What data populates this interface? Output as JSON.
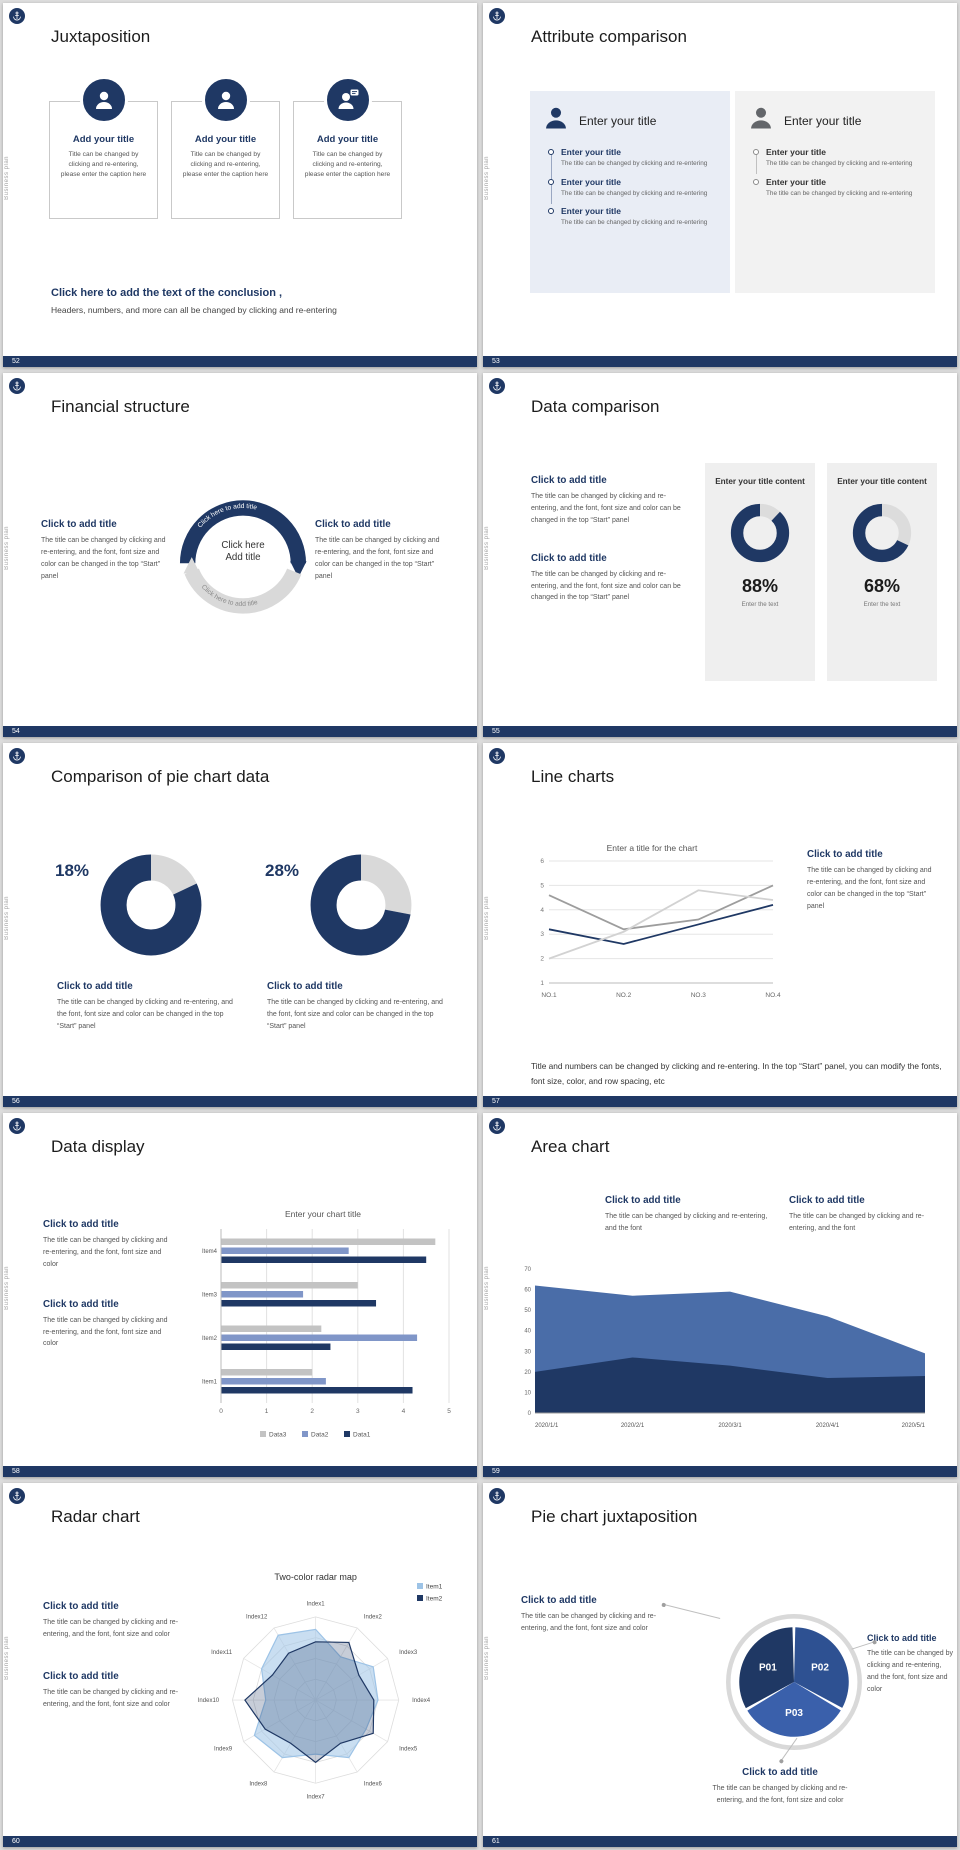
{
  "brand": {
    "vertical_text": "Business plan",
    "accent_color": "#1f3864"
  },
  "slides": {
    "s52": {
      "number": "52",
      "title": "Juxtaposition",
      "cards": [
        {
          "title": "Add your title",
          "caption": "Title can be changed by clicking and re-entering, please enter the caption here"
        },
        {
          "title": "Add your title",
          "caption": "Title can be changed by clicking and re-entering, please enter the caption here"
        },
        {
          "title": "Add your title",
          "caption": "Title can be changed by clicking and re-entering, please enter the caption here"
        }
      ],
      "conclusion_title": "Click here to add the text of the conclusion ,",
      "conclusion_text": "Headers, numbers, and more can all be changed by clicking and re-entering"
    },
    "s53": {
      "number": "53",
      "title": "Attribute comparison",
      "left_panel": {
        "heading": "Enter your title",
        "items": [
          {
            "title": "Enter your title",
            "caption": "The title can be changed by clicking and re-entering"
          },
          {
            "title": "Enter your title",
            "caption": "The title can be changed by clicking and re-entering"
          },
          {
            "title": "Enter your title",
            "caption": "The title can be changed by clicking and re-entering"
          }
        ]
      },
      "right_panel": {
        "heading": "Enter your title",
        "items": [
          {
            "title": "Enter your title",
            "caption": "The title can be changed by clicking and re-entering"
          },
          {
            "title": "Enter your title",
            "caption": "The title can be changed by clicking and re-entering"
          }
        ]
      }
    },
    "s54": {
      "number": "54",
      "title": "Financial structure",
      "arc_text": "Click here to add title",
      "center": {
        "line1": "Click here",
        "line2": "Add title"
      },
      "left_block": {
        "title": "Click to add title",
        "caption": "The title can be changed by clicking and re-entering, and the font, font size and color can be changed in the top “Start” panel"
      },
      "right_block": {
        "title": "Click to add title",
        "caption": "The title can be changed by clicking and re-entering, and the font, font size and color can be changed in the top “Start” panel"
      }
    },
    "s55": {
      "number": "55",
      "title": "Data comparison",
      "blocks": [
        {
          "title": "Click to add title",
          "caption": "The title can be changed by clicking and re-entering, and the font, font size and color can be changed in the top “Start” panel"
        },
        {
          "title": "Click to add title",
          "caption": "The title can be changed by clicking and re-entering, and the font, font size and color can be changed in the top “Start” panel"
        }
      ],
      "panels": [
        {
          "heading": "Enter your title content",
          "percent": "88%",
          "sub": "Enter the text"
        },
        {
          "heading": "Enter your title content",
          "percent": "68%",
          "sub": "Enter the text"
        }
      ]
    },
    "s56": {
      "number": "56",
      "title": "Comparison of pie chart data",
      "groups": [
        {
          "percent": "18%",
          "block": {
            "title": "Click to add title",
            "caption": "The title can be changed by clicking and re-entering, and the font, font size and color can be changed in the top “Start” panel"
          }
        },
        {
          "percent": "28%",
          "block": {
            "title": "Click to add title",
            "caption": "The title can be changed by clicking and re-entering, and the font, font size and color can be changed in the top “Start” panel"
          }
        }
      ]
    },
    "s57": {
      "number": "57",
      "title": "Line charts",
      "block": {
        "title": "Click to add title",
        "caption": "The title can be changed by clicking and re-entering, and the font, font size and color can be changed in the top “Start” panel"
      },
      "note": "Title and numbers can be changed by clicking and re-entering. In the top “Start” panel, you can modify the fonts, font size, color, and row spacing, etc"
    },
    "s58": {
      "number": "58",
      "title": "Data display",
      "blocks": [
        {
          "title": "Click to add title",
          "caption": "The title can be changed by clicking and re-entering, and the font, font size and color"
        },
        {
          "title": "Click to add title",
          "caption": "The title can be changed by clicking and re-entering, and the font, font size and color"
        }
      ]
    },
    "s59": {
      "number": "59",
      "title": "Area chart",
      "blocks": [
        {
          "title": "Click to add title",
          "caption": "The title can be changed by clicking and re-entering, and the font"
        },
        {
          "title": "Click to add title",
          "caption": "The title can be changed by clicking and re-entering, and the font"
        }
      ]
    },
    "s60": {
      "number": "60",
      "title": "Radar chart",
      "blocks": [
        {
          "title": "Click to add title",
          "caption": "The title can be changed by clicking and re-entering, and the font, font size and color"
        },
        {
          "title": "Click to add title",
          "caption": "The title can be changed by clicking and re-entering, and the font, font size and color"
        }
      ]
    },
    "s61": {
      "number": "61",
      "title": "Pie chart juxtaposition",
      "blocks": [
        {
          "title": "Click to add title",
          "caption": "The title can be changed by clicking and re-entering, and the font, font size and color"
        },
        {
          "title": "Click to add title",
          "caption": "The title can be changed by clicking and re-entering, and the font, font size and color"
        },
        {
          "title": "Click to add title",
          "caption": "The title can be changed by clicking and re-entering, and the font, font size and color"
        }
      ]
    }
  },
  "chart_data": [
    {
      "id": "donut_88",
      "type": "donut",
      "label": "88%",
      "radius": 37,
      "thickness": 20,
      "segments": [
        {
          "name": "rest",
          "value": 12,
          "color": "#dcdcdc"
        },
        {
          "name": "value",
          "value": 88,
          "color": "#1f3864"
        }
      ]
    },
    {
      "id": "donut_68",
      "type": "donut",
      "label": "68%",
      "radius": 37,
      "thickness": 20,
      "segments": [
        {
          "name": "rest",
          "value": 32,
          "color": "#dcdcdc"
        },
        {
          "name": "value",
          "value": 68,
          "color": "#1f3864"
        }
      ]
    },
    {
      "id": "donut_18",
      "type": "donut",
      "label": "18%",
      "radius": 36,
      "thickness": 25,
      "segments": [
        {
          "name": "value",
          "value": 18,
          "color": "#d9d9d9"
        },
        {
          "name": "rest",
          "value": 82,
          "color": "#1f3864"
        }
      ]
    },
    {
      "id": "donut_28",
      "type": "donut",
      "label": "28%",
      "radius": 36,
      "thickness": 25,
      "segments": [
        {
          "name": "value",
          "value": 28,
          "color": "#d9d9d9"
        },
        {
          "name": "rest",
          "value": 72,
          "color": "#1f3864"
        }
      ]
    },
    {
      "id": "line_57",
      "type": "line",
      "title": "Enter a title for the chart",
      "x": [
        "NO.1",
        "NO.2",
        "NO.3",
        "NO.4"
      ],
      "ylim": [
        1,
        6
      ],
      "yticks": [
        1,
        2,
        3,
        4,
        5,
        6
      ],
      "grid": true,
      "series": [
        {
          "name": "Series1",
          "color": "#1f3864",
          "values": [
            3.2,
            2.6,
            3.4,
            4.2
          ]
        },
        {
          "name": "Series2",
          "color": "#9d9d9d",
          "values": [
            4.6,
            3.2,
            3.6,
            5.0
          ]
        },
        {
          "name": "Series3",
          "color": "#d2d2d2",
          "values": [
            2.0,
            3.1,
            4.8,
            4.4
          ]
        }
      ]
    },
    {
      "id": "bar_58",
      "type": "bar_h",
      "title": "Enter your chart title",
      "categories": [
        "Item1",
        "Item2",
        "Item3",
        "Item4"
      ],
      "xlim": [
        0,
        5
      ],
      "xticks": [
        0,
        1,
        2,
        3,
        4,
        5
      ],
      "legend": [
        "Data3",
        "Data2",
        "Data1"
      ],
      "legend_position": "bottom",
      "grid": true,
      "series": [
        {
          "name": "Data1",
          "color": "#1f3864",
          "values": [
            4.2,
            2.4,
            3.4,
            4.5
          ]
        },
        {
          "name": "Data2",
          "color": "#8096c8",
          "values": [
            2.3,
            4.3,
            1.8,
            2.8
          ]
        },
        {
          "name": "Data3",
          "color": "#c3c3c3",
          "values": [
            2.0,
            2.2,
            3.0,
            4.7
          ]
        }
      ]
    },
    {
      "id": "area_59",
      "type": "area",
      "x": [
        "2020/1/1",
        "2020/2/1",
        "2020/3/1",
        "2020/4/1",
        "2020/5/1"
      ],
      "ylim": [
        0,
        70
      ],
      "yticks": [
        0,
        10,
        20,
        30,
        40,
        50,
        60,
        70
      ],
      "series": [
        {
          "name": "upper",
          "color": "#4a6da8",
          "values": [
            62,
            57,
            59,
            47,
            29
          ]
        },
        {
          "name": "lower",
          "color": "#1f3864",
          "values": [
            20,
            27,
            23,
            17,
            18
          ]
        }
      ]
    },
    {
      "id": "radar_60",
      "type": "radar",
      "title": "Two-color radar map",
      "axes": [
        "Index1",
        "Index2",
        "Index3",
        "Index4",
        "Index5",
        "Index6",
        "Index7",
        "Index8",
        "Index9",
        "Index10",
        "Index11",
        "Index12"
      ],
      "legend": [
        "Item1",
        "Item2"
      ],
      "scale": [
        0,
        1
      ],
      "series": [
        {
          "name": "Item1",
          "color": "#9dc3e6",
          "fill_color": "rgba(157,195,230,0.55)",
          "values": [
            0.85,
            0.6,
            0.8,
            0.75,
            0.7,
            0.8,
            0.65,
            0.8,
            0.85,
            0.6,
            0.75,
            0.9
          ]
        },
        {
          "name": "Item2",
          "color": "#1f3864",
          "fill_color": "rgba(31,56,100,0.25)",
          "values": [
            0.7,
            0.8,
            0.6,
            0.7,
            0.8,
            0.6,
            0.75,
            0.6,
            0.7,
            0.85,
            0.6,
            0.65
          ]
        }
      ]
    },
    {
      "id": "pie_61",
      "type": "pie",
      "labels": [
        "P01",
        "P02",
        "P03"
      ],
      "values": [
        33.3,
        33.3,
        33.4
      ],
      "colors": [
        "#1f3864",
        "#2e5192",
        "#3a60ab"
      ],
      "start_angle": 150,
      "outer_ring": true
    }
  ]
}
